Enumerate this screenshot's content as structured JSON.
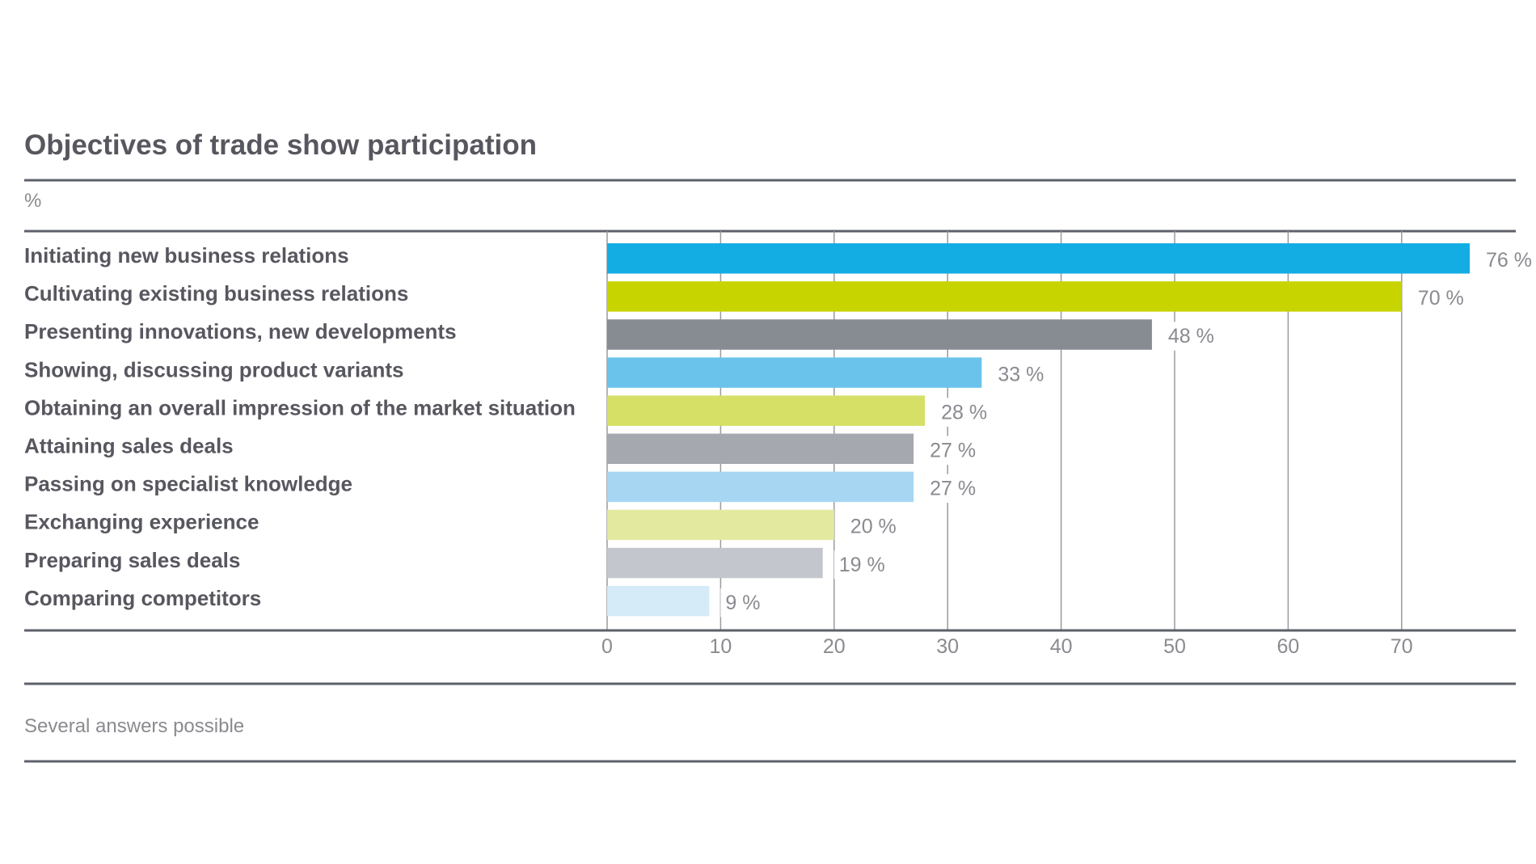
{
  "chart_data": {
    "type": "bar",
    "orientation": "horizontal",
    "title": "Objectives of trade show participation",
    "unit_label": "%",
    "categories": [
      "Initiating new business relations",
      "Cultivating existing business relations",
      "Presenting innovations, new developments",
      "Showing, discussing product variants",
      "Obtaining an overall impression of the market situation",
      "Attaining sales deals",
      "Passing on specialist knowledge",
      "Exchanging experience",
      "Preparing sales deals",
      "Comparing competitors"
    ],
    "values": [
      76,
      70,
      48,
      33,
      28,
      27,
      27,
      20,
      19,
      9
    ],
    "value_labels": [
      "76 %",
      "70 %",
      "48 %",
      "33 %",
      "28 %",
      "27 %",
      "27 %",
      "20 %",
      "19 %",
      "9 %"
    ],
    "colors": [
      "#14ade3",
      "#c8d400",
      "#878b92",
      "#6ac3ea",
      "#d6e066",
      "#a5a8ae",
      "#a6d6f2",
      "#e3eaa0",
      "#c3c6cc",
      "#d5ebf8"
    ],
    "x_ticks": [
      "0",
      "10",
      "20",
      "30",
      "40",
      "50",
      "60",
      "70"
    ],
    "xlim": [
      0,
      80
    ],
    "grid": true,
    "footnote": "Several answers possible"
  }
}
